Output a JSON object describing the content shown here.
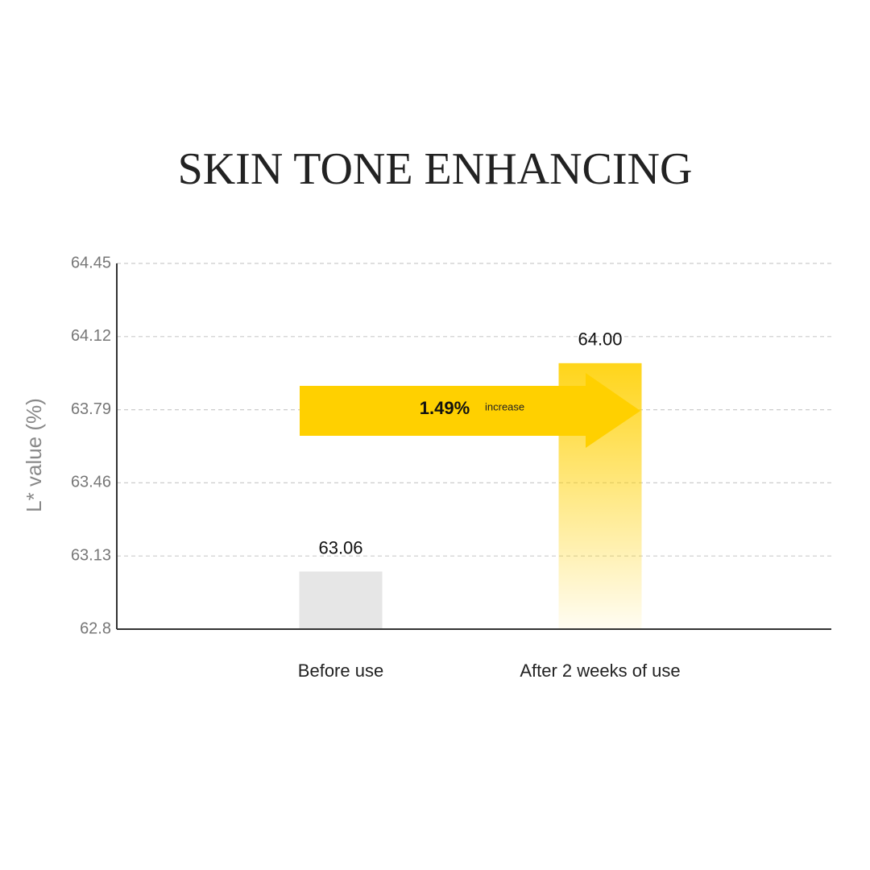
{
  "chart_data": {
    "type": "bar",
    "title": "SKIN TONE ENHANCING",
    "y_label": "L* value (%)",
    "categories": [
      "Before use",
      "After 2 weeks of use"
    ],
    "values": [
      63.06,
      64
    ],
    "value_labels": [
      "63.06",
      "64.00"
    ],
    "colors": [
      "#e6e6e6",
      "#ffd000"
    ],
    "fills": [
      "solid",
      "fade"
    ],
    "ylim": [
      62.8,
      64.45
    ],
    "yticks": [
      62.8,
      63.13,
      63.46,
      63.79,
      64.12,
      64.45
    ],
    "grid": true,
    "annotation": {
      "highlight": "1.49%",
      "text": "increase",
      "color": "#ffd000"
    }
  }
}
